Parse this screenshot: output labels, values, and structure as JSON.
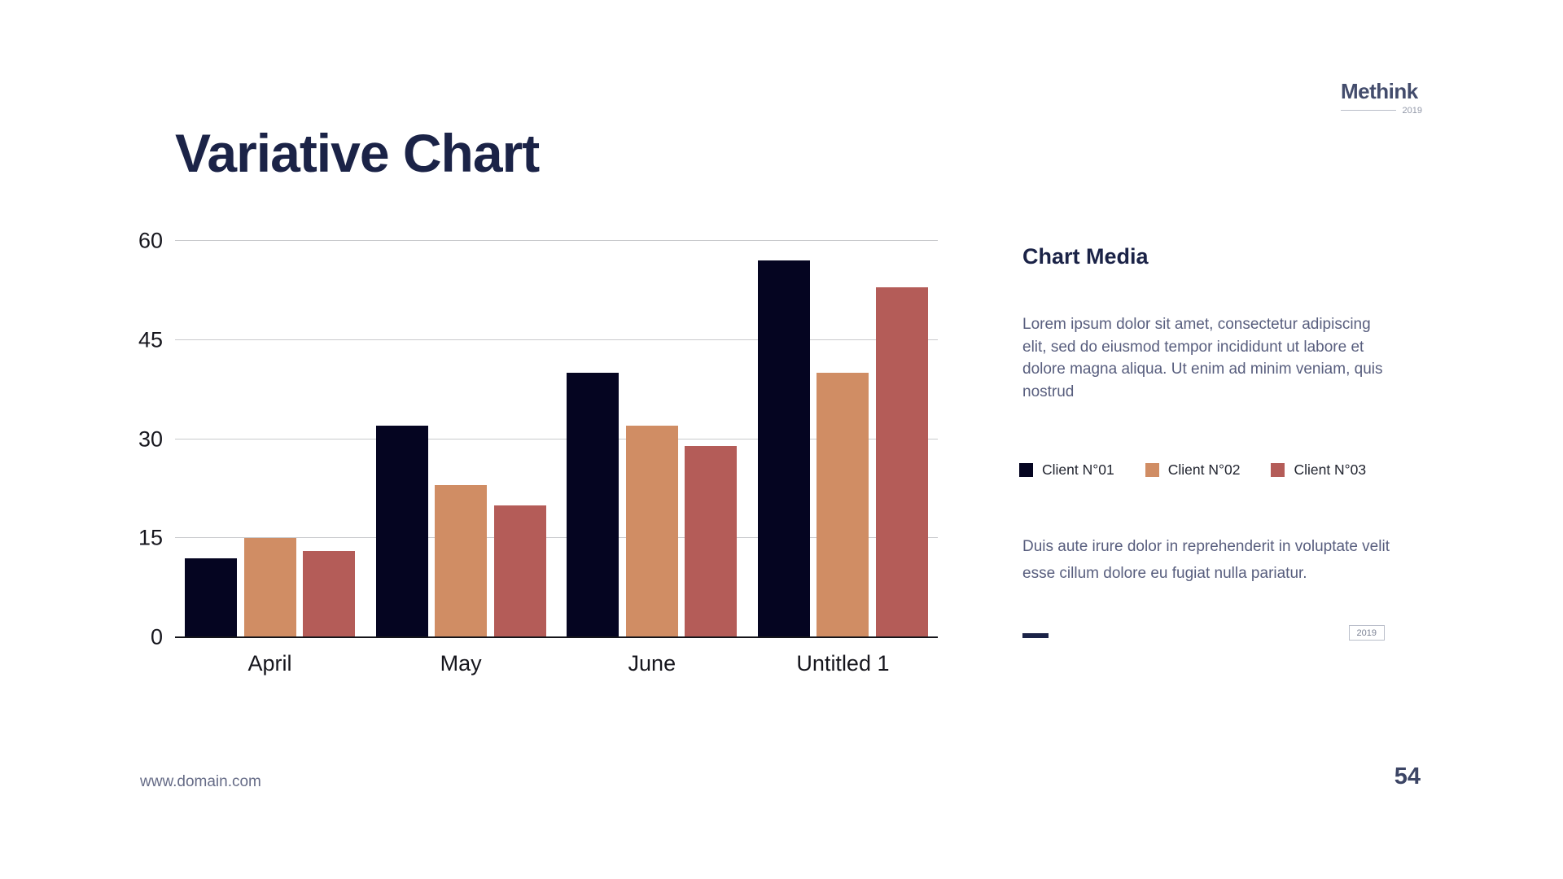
{
  "logo": {
    "name": "Methink",
    "year": "2019"
  },
  "slide": {
    "footer_url": "www.domain.com",
    "page_number": "54"
  },
  "chart_data": {
    "type": "bar",
    "title": "Variative Chart",
    "categories": [
      "April",
      "May",
      "June",
      "Untitled 1"
    ],
    "series": [
      {
        "name": "Client N°01",
        "color": "#050521",
        "values": [
          12,
          32,
          40,
          57
        ]
      },
      {
        "name": "Client N°02",
        "color": "#d08d64",
        "values": [
          15,
          23,
          32,
          40
        ]
      },
      {
        "name": "Client N°03",
        "color": "#b45c58",
        "values": [
          13,
          20,
          29,
          53
        ]
      }
    ],
    "xlabel": "",
    "ylabel": "",
    "ylim": [
      0,
      60
    ],
    "yticks": [
      0,
      15,
      30,
      45,
      60
    ],
    "grid": true,
    "legend_position": "right-panel"
  },
  "sidebar": {
    "heading": "Chart Media",
    "paragraph1": "Lorem ipsum dolor sit amet, consectetur adipiscing elit, sed do eiusmod tempor incididunt ut labore et dolore magna aliqua. Ut enim ad minim veniam, quis nostrud",
    "paragraph2": "Duis aute irure dolor in reprehenderit in voluptate velit esse cillum dolore eu fugiat nulla pariatur.",
    "year_badge": "2019"
  },
  "colors": {
    "accent_navy": "#1b2347",
    "bar_navy": "#050521",
    "bar_tan": "#d08d64",
    "bar_red": "#b45c58",
    "gridline": "#c9cacd",
    "axis": "#15151a",
    "body_text": "#585e7e"
  }
}
